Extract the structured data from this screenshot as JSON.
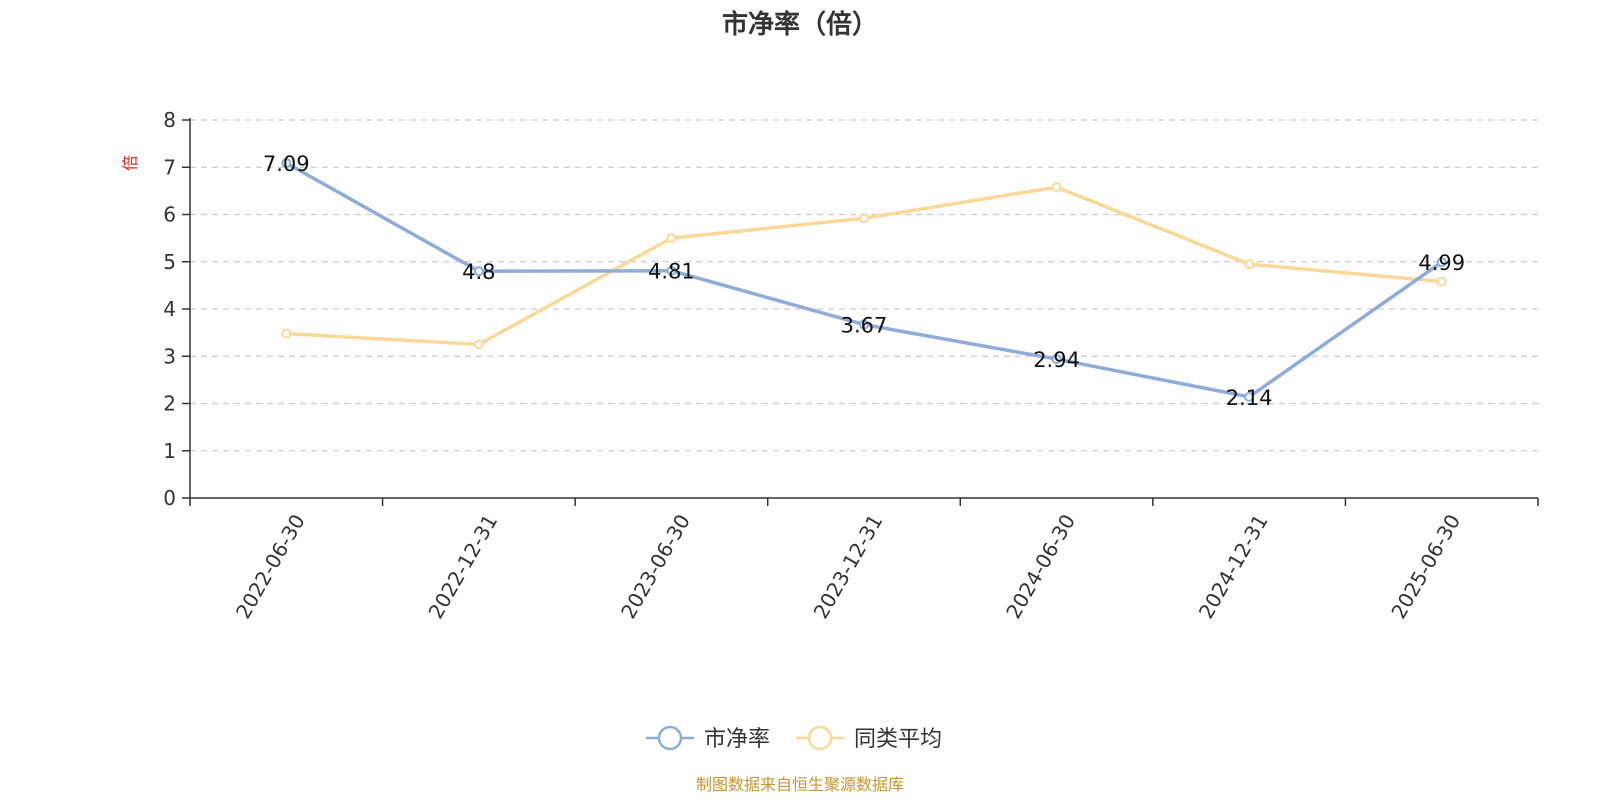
{
  "chart_data": {
    "type": "line",
    "title": "市净率（倍）",
    "ylabel": "倍",
    "ylim": [
      0,
      8
    ],
    "yticks": [
      0,
      1,
      2,
      3,
      4,
      5,
      6,
      7,
      8
    ],
    "categories": [
      "2022-06-30",
      "2022-12-31",
      "2023-06-30",
      "2023-12-31",
      "2024-06-30",
      "2024-12-31",
      "2025-06-30"
    ],
    "grid": true,
    "legend_position": "bottom",
    "series": [
      {
        "name": "市净率",
        "color": "#8eacd8",
        "values": [
          7.09,
          4.8,
          4.81,
          3.67,
          2.94,
          2.14,
          4.99
        ],
        "labels": [
          "7.09",
          "4.8",
          "4.81",
          "3.67",
          "2.94",
          "2.14",
          "4.99"
        ],
        "show_labels": true
      },
      {
        "name": "同类平均",
        "color": "#fad898",
        "values": [
          3.48,
          3.25,
          5.5,
          5.92,
          6.58,
          4.95,
          4.58
        ],
        "show_labels": false
      }
    ]
  },
  "footer": {
    "source": "制图数据来自恒生聚源数据库"
  }
}
